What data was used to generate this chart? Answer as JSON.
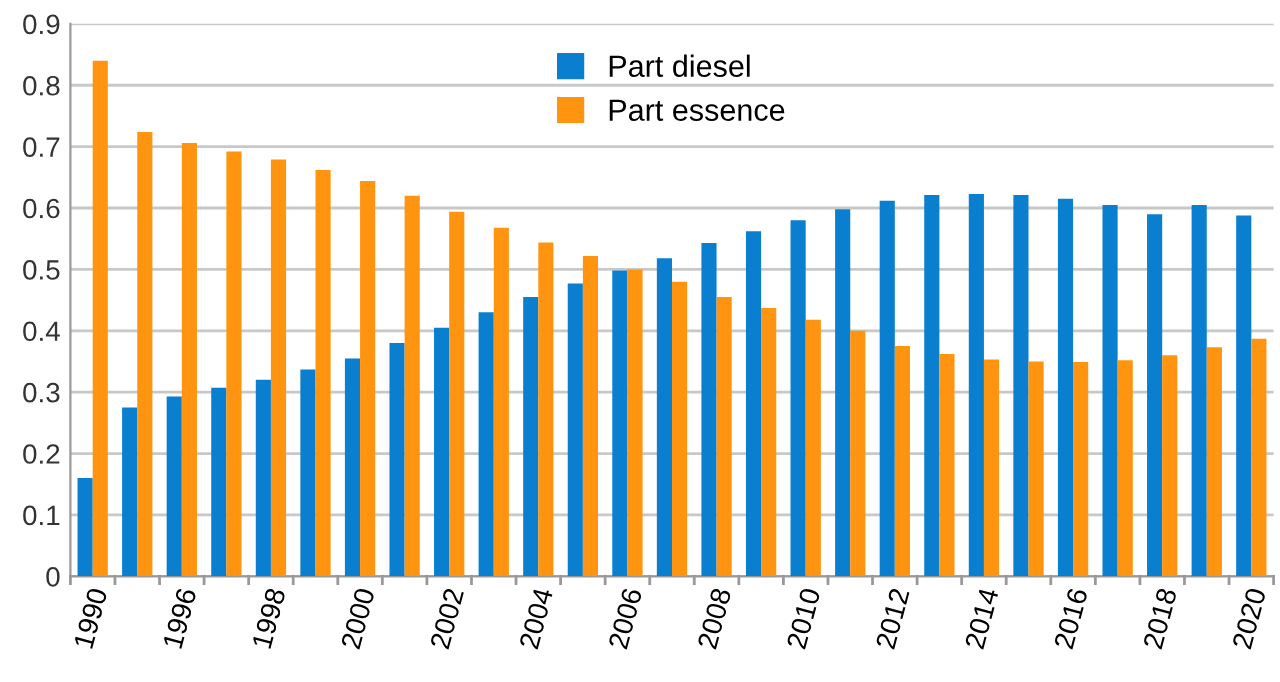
{
  "chart_data": {
    "type": "bar",
    "categories": [
      "1990",
      null,
      "1996",
      null,
      "1998",
      null,
      "2000",
      null,
      "2002",
      null,
      "2004",
      null,
      "2006",
      null,
      "2008",
      null,
      "2010",
      null,
      "2012",
      null,
      "2014",
      null,
      "2016",
      null,
      "2018",
      null,
      "2020"
    ],
    "series": [
      {
        "name": "Part diesel",
        "color": "#0a7fd0",
        "values": [
          0.16,
          0.275,
          0.293,
          0.307,
          0.32,
          0.337,
          0.355,
          0.38,
          0.405,
          0.43,
          0.455,
          0.477,
          0.498,
          0.518,
          0.543,
          0.562,
          0.58,
          0.598,
          0.612,
          0.621,
          0.623,
          0.621,
          0.615,
          0.605,
          0.59,
          0.605,
          0.588
        ]
      },
      {
        "name": "Part essence",
        "color": "#ff9410",
        "values": [
          0.84,
          0.724,
          0.706,
          0.692,
          0.679,
          0.662,
          0.644,
          0.62,
          0.594,
          0.568,
          0.544,
          0.522,
          0.5,
          0.48,
          0.455,
          0.437,
          0.418,
          0.4,
          0.375,
          0.362,
          0.353,
          0.35,
          0.349,
          0.352,
          0.36,
          0.373,
          0.387
        ]
      }
    ],
    "ylim": [
      0,
      0.9
    ],
    "yticks": [
      0,
      0.1,
      0.2,
      0.3,
      0.4,
      0.5,
      0.6,
      0.7,
      0.8,
      0.9
    ],
    "grid": "y",
    "legend": "top"
  }
}
